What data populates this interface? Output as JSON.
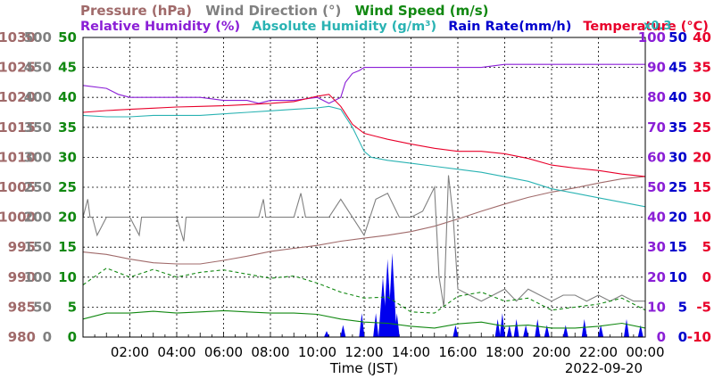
{
  "chart_data": {
    "type": "line",
    "header": {
      "line1": [
        {
          "key": "pressure",
          "text": "Pressure (hPa)",
          "color": "#a06a6a"
        },
        {
          "key": "wind_dir",
          "text": "Wind Direction (°)",
          "color": "#808080"
        },
        {
          "key": "wind_speed",
          "text": "Wind Speed (m/s)",
          "color": "#118811"
        }
      ],
      "line2": [
        {
          "key": "humidity",
          "text": "Relative Humidity (%)",
          "color": "#8b1fd6"
        },
        {
          "key": "abs_hum",
          "text": "Absolute Humidity (g/m³)",
          "color": "#2ab3b3"
        },
        {
          "key": "rain",
          "text": "Rain Rate(mm/h)",
          "color": "#0000cc"
        },
        {
          "key": "temp",
          "text": "Temperature (°C)",
          "color": "#e8002a"
        }
      ],
      "scale_note": {
        "text": "x0.3",
        "color": "#2ab3b3"
      }
    },
    "xlabel": "Time (JST)",
    "date": "2022-09-20",
    "x_ticks": [
      "02:00",
      "04:00",
      "06:00",
      "08:00",
      "10:00",
      "12:00",
      "14:00",
      "16:00",
      "18:00",
      "20:00",
      "22:00",
      "00:00"
    ],
    "xlim_hours": [
      0,
      24
    ],
    "grid": true,
    "axes": {
      "pressure": {
        "side": "left",
        "color": "#a06a6a",
        "ticks": [
          "1030",
          "1025",
          "1020",
          "1015",
          "1010",
          "1005",
          "1000",
          "995",
          "990",
          "985",
          "980"
        ],
        "range": [
          980,
          1030
        ]
      },
      "wind_dir": {
        "side": "left",
        "color": "#808080",
        "ticks": [
          "500",
          "450",
          "400",
          "350",
          "300",
          "250",
          "200",
          "150",
          "100",
          "50",
          "0"
        ],
        "range": [
          0,
          500
        ]
      },
      "wind_speed": {
        "side": "left",
        "color": "#118811",
        "ticks": [
          "50",
          "45",
          "40",
          "35",
          "30",
          "25",
          "20",
          "15",
          "10",
          "5",
          "0"
        ],
        "range": [
          0,
          50
        ]
      },
      "humidity": {
        "side": "right",
        "color": "#8b1fd6",
        "ticks": [
          "100",
          "90",
          "80",
          "70",
          "60",
          "50",
          "40",
          "30",
          "20",
          "10",
          "0"
        ],
        "range": [
          0,
          100
        ]
      },
      "rain": {
        "side": "right",
        "color": "#0000cc",
        "ticks": [
          "50",
          "45",
          "40",
          "35",
          "30",
          "25",
          "20",
          "15",
          "10",
          "5",
          "0"
        ],
        "range": [
          0,
          50
        ]
      },
      "temp": {
        "side": "right",
        "color": "#e8002a",
        "ticks": [
          "40",
          "35",
          "30",
          "25",
          "20",
          "15",
          "10",
          "5",
          "0",
          "-5",
          "-10"
        ],
        "range": [
          -10,
          40
        ]
      }
    },
    "series": [
      {
        "name": "Pressure (hPa)",
        "axis": "pressure",
        "color": "#a06a6a",
        "x": [
          0,
          1,
          2,
          3,
          4,
          5,
          6,
          7,
          8,
          9,
          10,
          11,
          12,
          13,
          14,
          15,
          16,
          17,
          18,
          19,
          20,
          21,
          22,
          23,
          24
        ],
        "y": [
          994.2,
          993.8,
          993.0,
          992.4,
          992.2,
          992.2,
          992.8,
          993.5,
          994.3,
          994.8,
          995.3,
          996.0,
          996.5,
          997.0,
          997.6,
          998.5,
          999.7,
          1001.0,
          1002.2,
          1003.3,
          1004.2,
          1004.9,
          1005.7,
          1006.4,
          1006.8
        ]
      },
      {
        "name": "Relative Humidity (%)",
        "axis": "humidity",
        "color": "#8b1fd6",
        "x": [
          0,
          1,
          1.5,
          2,
          3,
          4,
          5,
          6,
          7,
          7.5,
          8,
          9,
          10,
          10.5,
          11,
          11.2,
          11.5,
          11.8,
          12,
          12.5,
          13,
          14,
          15,
          16,
          17,
          18,
          19,
          20,
          21,
          22,
          23,
          24
        ],
        "y": [
          84,
          83,
          81,
          80,
          80,
          80,
          80,
          79,
          79,
          78,
          79,
          79,
          80,
          78,
          80,
          85,
          88,
          89,
          90,
          90,
          90,
          90,
          90,
          90,
          90,
          91,
          91,
          91,
          91,
          91,
          91,
          91
        ]
      },
      {
        "name": "Absolute Humidity (g/m³) x0.3",
        "axis": "humidity",
        "color": "#2ab3b3",
        "x": [
          0,
          1,
          2,
          3,
          4,
          5,
          6,
          7,
          8,
          9,
          10,
          10.5,
          11,
          11.5,
          12,
          12.3,
          13,
          14,
          15,
          16,
          17,
          18,
          19,
          20,
          21,
          22,
          23,
          24
        ],
        "y": [
          74,
          73.5,
          73.5,
          74,
          74,
          74,
          74.5,
          75,
          75.5,
          76,
          76.5,
          77,
          76,
          70,
          62,
          60,
          59,
          58,
          57,
          56,
          55,
          53.5,
          52,
          49.5,
          48,
          46.5,
          45,
          43.5
        ]
      },
      {
        "name": "Temperature (°C)",
        "axis": "temp",
        "color": "#e8002a",
        "x": [
          0,
          1,
          2,
          3,
          4,
          5,
          6,
          7,
          8,
          9,
          10,
          10.5,
          11,
          11.5,
          12,
          12.5,
          13,
          14,
          15,
          16,
          17,
          18,
          19,
          20,
          21,
          22,
          23,
          24
        ],
        "y": [
          27.5,
          27.8,
          28,
          28.2,
          28.4,
          28.5,
          28.6,
          28.8,
          29,
          29.3,
          30.2,
          30.5,
          28.5,
          25.5,
          24,
          23.5,
          23,
          22.2,
          21.5,
          21,
          21,
          20.6,
          19.8,
          18.7,
          18.2,
          17.8,
          17.2,
          16.8
        ]
      },
      {
        "name": "Wind Direction (°)",
        "axis": "wind_dir",
        "color": "#808080",
        "x": [
          0,
          0.2,
          0.3,
          0.4,
          0.6,
          1,
          1.5,
          2,
          2.4,
          2.5,
          2.6,
          3,
          3.5,
          4,
          4.3,
          4.4,
          4.5,
          5,
          5.5,
          6,
          6.5,
          7,
          7.5,
          7.7,
          7.8,
          8,
          8.5,
          9,
          9.3,
          9.5,
          9.7,
          10,
          10.5,
          11,
          11.5,
          12,
          12.5,
          13,
          13.5,
          14,
          14.5,
          15,
          15.2,
          15.4,
          15.6,
          15.8,
          16,
          16.5,
          17,
          17.5,
          18,
          18.5,
          19,
          19.5,
          20,
          20.5,
          21,
          21.5,
          22,
          22.5,
          23,
          23.5,
          24
        ],
        "y": [
          200,
          230,
          200,
          200,
          170,
          200,
          200,
          200,
          170,
          200,
          200,
          200,
          200,
          200,
          160,
          200,
          200,
          200,
          200,
          200,
          200,
          200,
          200,
          230,
          200,
          200,
          200,
          200,
          240,
          200,
          200,
          200,
          200,
          230,
          200,
          170,
          230,
          240,
          200,
          200,
          210,
          250,
          100,
          50,
          270,
          200,
          80,
          70,
          60,
          70,
          80,
          60,
          80,
          70,
          60,
          70,
          70,
          60,
          70,
          60,
          70,
          60,
          60
        ]
      },
      {
        "name": "Wind Speed (m/s) max",
        "axis": "wind_speed",
        "color": "#118811",
        "dash": true,
        "x": [
          0,
          1,
          2,
          3,
          4,
          5,
          6,
          7,
          8,
          9,
          10,
          11,
          12,
          13,
          14,
          15,
          16,
          17,
          18,
          19,
          20,
          21,
          22,
          23,
          24
        ],
        "y": [
          8.7,
          11.5,
          10.0,
          11.3,
          10.0,
          10.8,
          11.2,
          10.5,
          9.8,
          10.2,
          9.0,
          7.5,
          6.5,
          6.7,
          4.2,
          4.0,
          6.8,
          7.5,
          6.0,
          6.5,
          4.5,
          5.0,
          5.5,
          6.5,
          4.5
        ]
      },
      {
        "name": "Wind Speed (m/s) avg",
        "axis": "wind_speed",
        "color": "#118811",
        "x": [
          0,
          1,
          2,
          3,
          4,
          5,
          6,
          7,
          8,
          9,
          10,
          11,
          12,
          13,
          14,
          15,
          16,
          17,
          18,
          19,
          20,
          21,
          22,
          23,
          24
        ],
        "y": [
          3.0,
          4.0,
          4.0,
          4.3,
          4.0,
          4.2,
          4.4,
          4.2,
          4.0,
          4.0,
          3.8,
          3.0,
          2.5,
          2.3,
          1.8,
          1.5,
          2.2,
          2.5,
          1.8,
          2.0,
          1.5,
          1.5,
          1.8,
          2.3,
          1.5
        ]
      }
    ],
    "rain_bars": {
      "name": "Rain Rate(mm/h)",
      "axis": "rain",
      "color": "#0000ee",
      "x": [
        10.4,
        11.1,
        11.9,
        12.5,
        12.8,
        13.0,
        13.2,
        13.4,
        15.9,
        17.7,
        17.9,
        18.2,
        18.5,
        18.9,
        19.4,
        19.8,
        20.6,
        21.4,
        22.1,
        23.2,
        23.8
      ],
      "y": [
        1,
        2,
        4,
        4,
        10,
        13,
        14,
        4,
        2,
        3,
        4,
        2,
        3,
        2,
        3,
        2,
        2,
        3,
        2,
        3,
        2
      ]
    }
  }
}
